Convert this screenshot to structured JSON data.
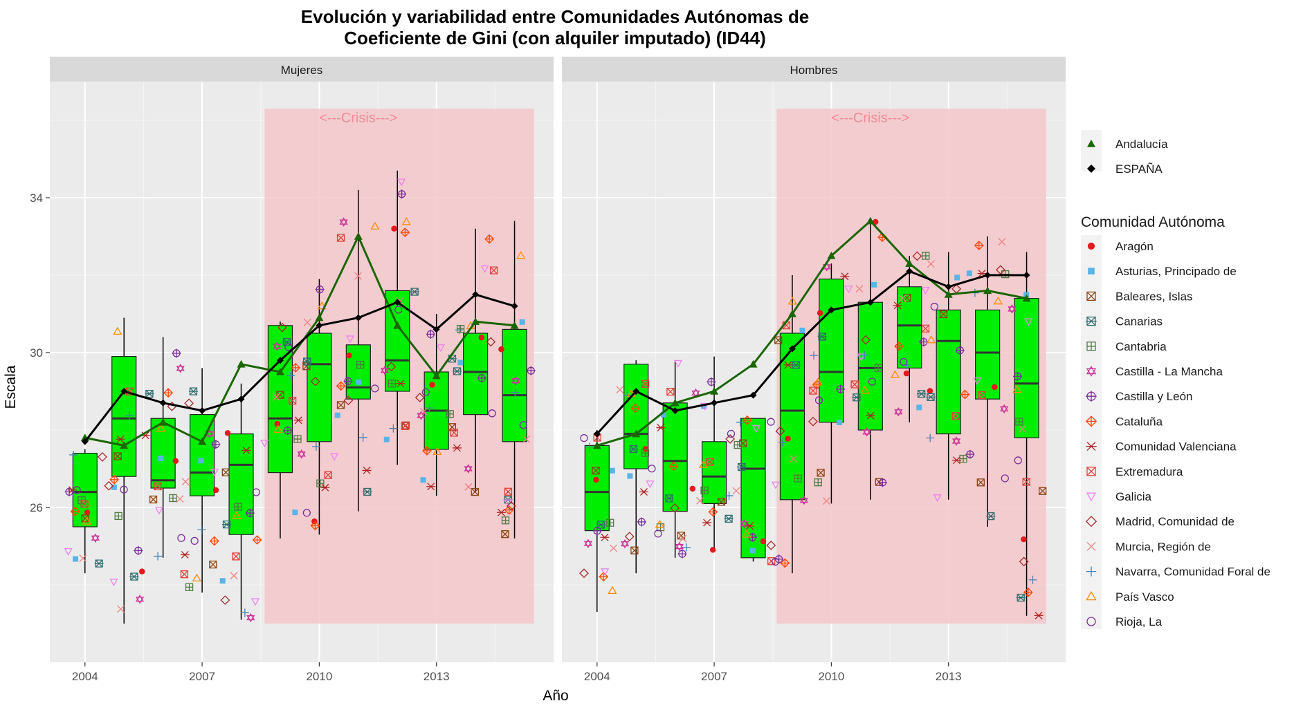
{
  "chart_data": {
    "type": "box",
    "title_line1": "Evolución y variabilidad entre Comunidades Autónomas de",
    "title_line2": "Coeficiente de Gini (con alquiler imputado) (ID44)",
    "xlabel": "Año",
    "ylabel": "Escala",
    "x_ticks": [
      2004,
      2007,
      2010,
      2013
    ],
    "y_ticks": [
      26,
      30,
      34
    ],
    "xlim": [
      2003.1,
      2016.0
    ],
    "ylim": [
      22.0,
      37.0
    ],
    "crisis": {
      "label": "<---Crisis--->",
      "x_start": 2008.6,
      "x_end": 2015.5,
      "y_bottom": 23.0,
      "y_top": 36.3
    },
    "colors": {
      "box_fill": "#00ee00",
      "crisis_fill": "#f4c7cb",
      "crisis_text": "#f08c96",
      "andalucia": "#1a6600",
      "espana": "#000000",
      "panel_bg": "#ebebeb",
      "strip_bg": "#d9d9d9"
    },
    "legend_key_series": [
      {
        "name": "Andalucía",
        "marker": "triangle",
        "color": "#1a6600"
      },
      {
        "name": "ESPAÑA",
        "marker": "diamond",
        "color": "#000000"
      }
    ],
    "legend_title": "Comunidad Autónoma",
    "legend_regions": [
      {
        "name": "Aragón",
        "marker": "dot",
        "color": "#e31a1c"
      },
      {
        "name": "Asturias, Principado de",
        "marker": "square",
        "color": "#5ab4e5"
      },
      {
        "name": "Baleares, Islas",
        "marker": "square-x",
        "color": "#8b4513"
      },
      {
        "name": "Canarias",
        "marker": "square-cross-x",
        "color": "#2f6f6f"
      },
      {
        "name": "Cantabria",
        "marker": "square-plus",
        "color": "#4f7942"
      },
      {
        "name": "Castilla - La Mancha",
        "marker": "star-of-david",
        "color": "#cc3399"
      },
      {
        "name": "Castilla y León",
        "marker": "circle-plus",
        "color": "#7a2e9a"
      },
      {
        "name": "Cataluña",
        "marker": "diamond-plus",
        "color": "#ff4500"
      },
      {
        "name": "Comunidad Valenciana",
        "marker": "asterisk",
        "color": "#b22222"
      },
      {
        "name": "Extremadura",
        "marker": "square-x",
        "color": "#e0423a"
      },
      {
        "name": "Galicia",
        "marker": "triangle-down",
        "color": "#ee82ee"
      },
      {
        "name": "Madrid, Comunidad de",
        "marker": "diamond-open",
        "color": "#a52a2a"
      },
      {
        "name": "Murcia, Región de",
        "marker": "x",
        "color": "#f08080"
      },
      {
        "name": "Navarra, Comunidad Foral de",
        "marker": "plus",
        "color": "#4682b4"
      },
      {
        "name": "País Vasco",
        "marker": "triangle-open",
        "color": "#ff8c00"
      },
      {
        "name": "Rioja, La",
        "marker": "circle-open",
        "color": "#7a2e9a"
      }
    ],
    "panels": [
      {
        "name": "Mujeres",
        "boxes": [
          {
            "x": 2004,
            "q1": 25.5,
            "median": 26.4,
            "q3": 27.4,
            "lo": 24.3,
            "hi": 27.5
          },
          {
            "x": 2005,
            "q1": 26.8,
            "median": 28.3,
            "q3": 29.9,
            "lo": 23.0,
            "hi": 30.9
          },
          {
            "x": 2006,
            "q1": 26.5,
            "median": 26.7,
            "q3": 28.3,
            "lo": 24.7,
            "hi": 30.4
          },
          {
            "x": 2007,
            "q1": 26.3,
            "median": 26.9,
            "q3": 28.4,
            "lo": 23.8,
            "hi": 29.6
          },
          {
            "x": 2008,
            "q1": 25.3,
            "median": 27.1,
            "q3": 27.9,
            "lo": 23.1,
            "hi": 29.2
          },
          {
            "x": 2009,
            "q1": 26.9,
            "median": 28.3,
            "q3": 30.7,
            "lo": 25.2,
            "hi": 30.8
          },
          {
            "x": 2010,
            "q1": 27.7,
            "median": 29.7,
            "q3": 30.5,
            "lo": 25.3,
            "hi": 31.9
          },
          {
            "x": 2011,
            "q1": 28.8,
            "median": 29.1,
            "q3": 30.2,
            "lo": 25.9,
            "hi": 34.2
          },
          {
            "x": 2012,
            "q1": 29.0,
            "median": 29.8,
            "q3": 31.6,
            "lo": 27.1,
            "hi": 34.7
          },
          {
            "x": 2013,
            "q1": 27.5,
            "median": 28.5,
            "q3": 29.5,
            "lo": 26.3,
            "hi": 31.0
          },
          {
            "x": 2014,
            "q1": 28.4,
            "median": 29.5,
            "q3": 30.5,
            "lo": 26.4,
            "hi": 33.2
          },
          {
            "x": 2015,
            "q1": 27.7,
            "median": 28.9,
            "q3": 30.6,
            "lo": 25.2,
            "hi": 33.4
          }
        ],
        "andalucia": [
          27.8,
          27.6,
          28.2,
          27.7,
          29.7,
          29.5,
          30.9,
          33.0,
          30.7,
          29.4,
          30.8,
          30.7
        ],
        "espana": [
          27.7,
          29.0,
          28.7,
          28.5,
          28.8,
          29.8,
          30.7,
          30.9,
          31.3,
          30.6,
          31.5,
          31.2
        ]
      },
      {
        "name": "Hombres",
        "boxes": [
          {
            "x": 2004,
            "q1": 25.4,
            "median": 26.4,
            "q3": 27.6,
            "lo": 23.3,
            "hi": 28.0
          },
          {
            "x": 2005,
            "q1": 27.0,
            "median": 27.9,
            "q3": 29.7,
            "lo": 24.3,
            "hi": 29.8
          },
          {
            "x": 2006,
            "q1": 25.9,
            "median": 27.2,
            "q3": 28.7,
            "lo": 24.7,
            "hi": 29.8
          },
          {
            "x": 2007,
            "q1": 26.1,
            "median": 26.8,
            "q3": 27.7,
            "lo": 24.9,
            "hi": 29.9
          },
          {
            "x": 2008,
            "q1": 24.7,
            "median": 27.0,
            "q3": 28.3,
            "lo": 24.6,
            "hi": 28.3
          },
          {
            "x": 2009,
            "q1": 26.2,
            "median": 28.5,
            "q3": 30.5,
            "lo": 24.3,
            "hi": 32.0
          },
          {
            "x": 2010,
            "q1": 28.2,
            "median": 29.5,
            "q3": 31.9,
            "lo": 26.1,
            "hi": 32.3
          },
          {
            "x": 2011,
            "q1": 28.0,
            "median": 29.6,
            "q3": 31.3,
            "lo": 26.2,
            "hi": 33.4
          },
          {
            "x": 2012,
            "q1": 29.6,
            "median": 30.7,
            "q3": 31.7,
            "lo": 28.2,
            "hi": 32.5
          },
          {
            "x": 2013,
            "q1": 27.9,
            "median": 30.3,
            "q3": 31.1,
            "lo": 26.2,
            "hi": 32.6
          },
          {
            "x": 2014,
            "q1": 28.8,
            "median": 30.0,
            "q3": 31.1,
            "lo": 25.5,
            "hi": 33.0
          },
          {
            "x": 2015,
            "q1": 27.8,
            "median": 29.2,
            "q3": 31.4,
            "lo": 23.2,
            "hi": 32.6
          }
        ],
        "andalucia": [
          27.6,
          27.9,
          28.7,
          29.0,
          29.7,
          31.0,
          32.5,
          33.4,
          32.3,
          31.5,
          31.6,
          31.4
        ],
        "espana": [
          27.9,
          29.0,
          28.5,
          28.7,
          28.9,
          30.1,
          31.1,
          31.3,
          32.1,
          31.7,
          32.0,
          32.0
        ]
      }
    ]
  }
}
